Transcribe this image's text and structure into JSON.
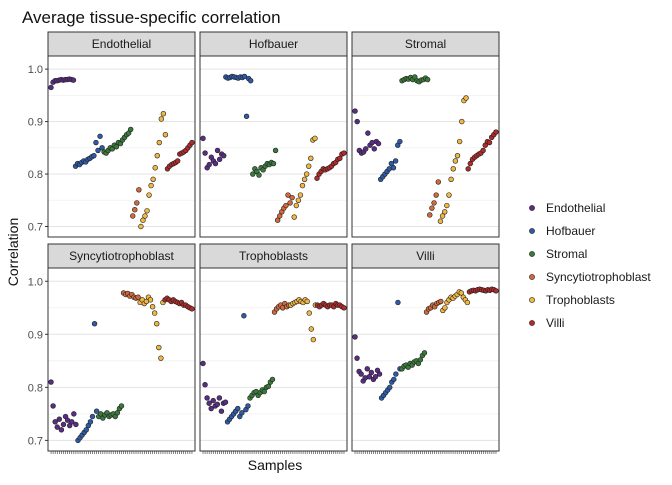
{
  "chart_data": {
    "type": "scatter",
    "title": "Average tissue-specific correlation",
    "xlabel": "Samples",
    "ylabel": "Correlation",
    "facet_layout": "3 columns x 2 rows",
    "legend_position": "right",
    "grid": true,
    "rows": [
      {
        "ylim": [
          0.68,
          1.025
        ],
        "yticks": [
          0.7,
          0.8,
          0.9,
          1.0
        ],
        "ytick_labels": [
          "0.7",
          "0.8",
          "0.9",
          "1.0"
        ]
      },
      {
        "ylim": [
          0.68,
          1.025
        ],
        "yticks": [
          0.7,
          0.8,
          0.9,
          1.0
        ],
        "ytick_labels": [
          "0.7",
          "0.8",
          "0.9",
          "1.0"
        ]
      }
    ],
    "series": [
      {
        "name": "Endothelial",
        "color": "#5B2C86"
      },
      {
        "name": "Hofbauer",
        "color": "#2E5BA8"
      },
      {
        "name": "Stromal",
        "color": "#3A7A3A"
      },
      {
        "name": "Syncytiotrophoblast",
        "color": "#D2693C"
      },
      {
        "name": "Trophoblasts",
        "color": "#F2B742"
      },
      {
        "name": "Villi",
        "color": "#B22A2A"
      }
    ],
    "facets": [
      {
        "name": "Endothelial",
        "groups": {
          "Endothelial": [
            0.965,
            0.975,
            0.978,
            0.978,
            0.979,
            0.98,
            0.979,
            0.98,
            0.98,
            0.981,
            0.98,
            0.979
          ],
          "Hofbauer": [
            0.815,
            0.82,
            0.818,
            0.822,
            0.825,
            0.823,
            0.828,
            0.83,
            0.833,
            0.835,
            0.86,
            0.845,
            0.872,
            0.85
          ],
          "Stromal": [
            0.842,
            0.84,
            0.845,
            0.85,
            0.848,
            0.855,
            0.852,
            0.86,
            0.858,
            0.865,
            0.87,
            0.875,
            0.878,
            0.885
          ],
          "Syncytiotrophoblast": [
            0.72,
            0.732,
            0.745,
            0.77
          ],
          "Trophoblasts": [
            0.7,
            0.712,
            0.72,
            0.73,
            0.76,
            0.778,
            0.79,
            0.812,
            0.835,
            0.86,
            0.905,
            0.915,
            0.875
          ],
          "Villi": [
            0.81,
            0.815,
            0.818,
            0.82,
            0.822,
            0.825,
            0.838,
            0.84,
            0.842,
            0.845,
            0.85,
            0.855,
            0.86
          ]
        }
      },
      {
        "name": "Hofbauer",
        "groups": {
          "Endothelial": [
            0.868,
            0.84,
            0.812,
            0.818,
            0.832,
            0.825,
            0.82,
            0.845,
            0.828,
            0.838,
            0.835
          ],
          "Hofbauer": [
            0.985,
            0.983,
            0.984,
            0.986,
            0.985,
            0.984,
            0.983,
            0.985,
            0.984,
            0.986,
            0.91,
            0.982,
            0.978
          ],
          "Stromal": [
            0.8,
            0.81,
            0.805,
            0.798,
            0.812,
            0.808,
            0.815,
            0.82,
            0.818,
            0.822,
            0.82,
            0.845
          ],
          "Syncytiotrophoblast": [
            0.712,
            0.72,
            0.728,
            0.735,
            0.74,
            0.76,
            0.745,
            0.755
          ],
          "Trophoblasts": [
            0.718,
            0.74,
            0.75,
            0.76,
            0.778,
            0.79,
            0.8,
            0.815,
            0.83,
            0.865,
            0.868
          ],
          "Villi": [
            0.792,
            0.8,
            0.805,
            0.81,
            0.808,
            0.81,
            0.812,
            0.815,
            0.82,
            0.822,
            0.828,
            0.83,
            0.838,
            0.84
          ]
        }
      },
      {
        "name": "Stromal",
        "groups": {
          "Endothelial": [
            0.92,
            0.9,
            0.845,
            0.84,
            0.842,
            0.848,
            0.878,
            0.855,
            0.86,
            0.848,
            0.862,
            0.858
          ],
          "Hofbauer": [
            0.79,
            0.795,
            0.8,
            0.805,
            0.81,
            0.82,
            0.812,
            0.825,
            0.855,
            0.862
          ],
          "Stromal": [
            0.978,
            0.98,
            0.982,
            0.981,
            0.984,
            0.98,
            0.985,
            0.978,
            0.976,
            0.979,
            0.98,
            0.983,
            0.98
          ],
          "Syncytiotrophoblast": [
            0.722,
            0.735,
            0.745,
            0.76,
            0.785
          ],
          "Trophoblasts": [
            0.71,
            0.72,
            0.728,
            0.74,
            0.76,
            0.79,
            0.81,
            0.825,
            0.835,
            0.862,
            0.9,
            0.94,
            0.945
          ],
          "Villi": [
            0.81,
            0.82,
            0.828,
            0.832,
            0.835,
            0.838,
            0.84,
            0.845,
            0.855,
            0.862,
            0.86,
            0.87,
            0.875,
            0.88
          ]
        }
      },
      {
        "name": "Syncytiotrophoblast",
        "groups": {
          "Endothelial": [
            0.81,
            0.765,
            0.735,
            0.725,
            0.74,
            0.72,
            0.73,
            0.745,
            0.738,
            0.728,
            0.735,
            0.75,
            0.73
          ],
          "Hofbauer": [
            0.7,
            0.705,
            0.71,
            0.715,
            0.72,
            0.728,
            0.735,
            0.745,
            0.92,
            0.755
          ],
          "Stromal": [
            0.745,
            0.75,
            0.742,
            0.748,
            0.752,
            0.745,
            0.748,
            0.75,
            0.745,
            0.752,
            0.76,
            0.765
          ],
          "Syncytiotrophoblast": [
            0.978,
            0.975,
            0.977,
            0.972,
            0.975,
            0.97,
            0.968,
            0.97
          ],
          "Trophoblasts": [
            0.96,
            0.965,
            0.958,
            0.962,
            0.97,
            0.965,
            0.952,
            0.94,
            0.92,
            0.875,
            0.855,
            0.96
          ],
          "Villi": [
            0.965,
            0.968,
            0.965,
            0.962,
            0.965,
            0.962,
            0.96,
            0.958,
            0.96,
            0.955,
            0.955,
            0.952,
            0.95,
            0.948
          ]
        }
      },
      {
        "name": "Trophoblasts",
        "groups": {
          "Endothelial": [
            0.845,
            0.805,
            0.78,
            0.77,
            0.76,
            0.775,
            0.765,
            0.768,
            0.78,
            0.755,
            0.77,
            0.772
          ],
          "Hofbauer": [
            0.735,
            0.74,
            0.745,
            0.75,
            0.755,
            0.76,
            0.745,
            0.752,
            0.935,
            0.758,
            0.765
          ],
          "Stromal": [
            0.78,
            0.785,
            0.79,
            0.792,
            0.785,
            0.79,
            0.795,
            0.792,
            0.8,
            0.802,
            0.81,
            0.815
          ],
          "Syncytiotrophoblast": [
            0.942,
            0.948,
            0.952,
            0.955,
            0.95,
            0.958,
            0.952,
            0.955
          ],
          "Trophoblasts": [
            0.955,
            0.958,
            0.96,
            0.962,
            0.965,
            0.962,
            0.96,
            0.965,
            0.962,
            0.94,
            0.91,
            0.89,
            0.955
          ],
          "Villi": [
            0.955,
            0.952,
            0.955,
            0.958,
            0.955,
            0.952,
            0.955,
            0.955,
            0.952,
            0.958,
            0.955,
            0.955,
            0.952,
            0.95
          ]
        }
      },
      {
        "name": "Villi",
        "groups": {
          "Endothelial": [
            0.895,
            0.855,
            0.83,
            0.825,
            0.812,
            0.818,
            0.835,
            0.82,
            0.828,
            0.815,
            0.82,
            0.832,
            0.825
          ],
          "Hofbauer": [
            0.78,
            0.785,
            0.79,
            0.795,
            0.8,
            0.81,
            0.815,
            0.825,
            0.96,
            0.835
          ],
          "Stromal": [
            0.835,
            0.84,
            0.842,
            0.838,
            0.845,
            0.842,
            0.848,
            0.85,
            0.845,
            0.852,
            0.86,
            0.865
          ],
          "Syncytiotrophoblast": [
            0.942,
            0.948,
            0.95,
            0.955,
            0.952,
            0.958,
            0.96,
            0.962
          ],
          "Trophoblasts": [
            0.945,
            0.95,
            0.96,
            0.965,
            0.97,
            0.968,
            0.972,
            0.975,
            0.98,
            0.978,
            0.97,
            0.965,
            0.96
          ],
          "Villi": [
            0.98,
            0.982,
            0.983,
            0.982,
            0.984,
            0.985,
            0.984,
            0.983,
            0.982,
            0.984,
            0.983,
            0.985,
            0.984,
            0.982
          ]
        }
      }
    ]
  }
}
